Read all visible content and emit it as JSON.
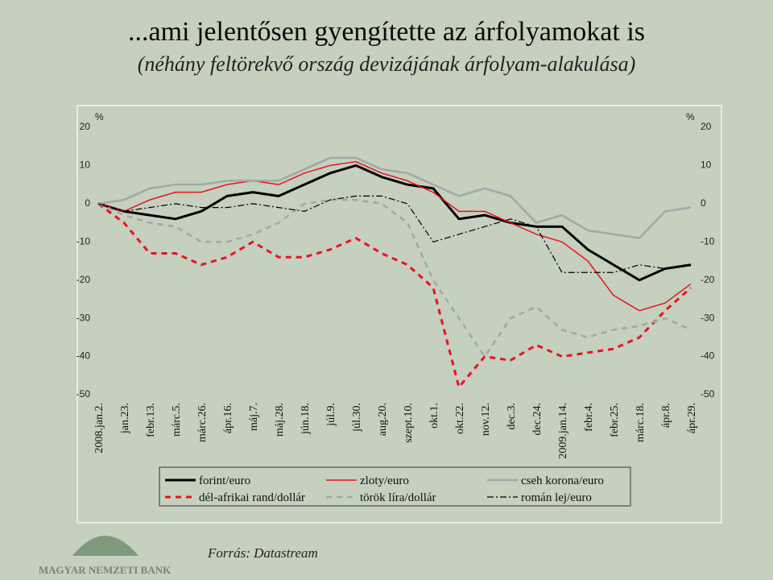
{
  "chart_data": {
    "type": "line",
    "title": "...ami jelentősen gyengítette az árfolyamokat is",
    "subtitle": "(néhány feltörekvő ország devizájának árfolyam-alakulása)",
    "y_unit": "%",
    "y2_unit": "%",
    "categories": [
      "2008.jan.2.",
      "jan.23.",
      "febr.13.",
      "márc.5.",
      "márc.26.",
      "ápr.16.",
      "máj.7.",
      "máj.28.",
      "jún.18.",
      "júl.9.",
      "júl.30.",
      "aug.20.",
      "szept.10.",
      "okt.1.",
      "okt.22.",
      "nov.12.",
      "dec.3.",
      "dec.24.",
      "2009.jan.14.",
      "febr.4.",
      "febr.25.",
      "márc.18.",
      "ápr.8.",
      "ápr.29."
    ],
    "ylim": [
      -50,
      20
    ],
    "yticks": [
      -50,
      -40,
      -30,
      -20,
      -10,
      0,
      10,
      20
    ],
    "y2lim": [
      -50,
      20
    ],
    "y2ticks": [
      -50,
      -40,
      -30,
      -20,
      -10,
      0,
      10,
      20
    ],
    "series": [
      {
        "name": "forint/euro",
        "color": "#000000",
        "width": 3,
        "dash": "solid",
        "values": [
          0,
          -2,
          -3,
          -4,
          -2,
          2,
          3,
          2,
          5,
          8,
          10,
          7,
          5,
          4,
          -4,
          -3,
          -5,
          -6,
          -6,
          -12,
          -16,
          -20,
          -17,
          -16
        ]
      },
      {
        "name": "zloty/euro",
        "color": "#e8141b",
        "width": 1.5,
        "dash": "solid",
        "values": [
          0,
          -2,
          1,
          3,
          3,
          5,
          6,
          5,
          8,
          10,
          11,
          8,
          6,
          3,
          -2,
          -2,
          -5,
          -8,
          -10,
          -15,
          -24,
          -28,
          -26,
          -21
        ]
      },
      {
        "name": "cseh korona/euro",
        "color": "#a6a6a6",
        "width": 2.5,
        "dash": "solid",
        "values": [
          0,
          1,
          4,
          5,
          5,
          6,
          6,
          6,
          9,
          12,
          12,
          9,
          8,
          5,
          2,
          4,
          2,
          -5,
          -3,
          -7,
          -8,
          -9,
          -2,
          -1
        ]
      },
      {
        "name": "dél-afrikai rand/dollár",
        "color": "#e8141b",
        "width": 3,
        "dash": "dashed",
        "values": [
          0,
          -5,
          -13,
          -13,
          -16,
          -14,
          -10,
          -14,
          -14,
          -12,
          -9,
          -13,
          -16,
          -22,
          -48,
          -40,
          -41,
          -37,
          -40,
          -39,
          -38,
          -35,
          -28,
          -22
        ]
      },
      {
        "name": "török líra/dollár",
        "color": "#a6a6a6",
        "width": 2.5,
        "dash": "dashed",
        "values": [
          0,
          -3,
          -5,
          -6,
          -10,
          -10,
          -8,
          -5,
          0,
          1,
          1,
          0,
          -5,
          -20,
          -30,
          -40,
          -30,
          -27,
          -33,
          -35,
          -33,
          -32,
          -30,
          -33
        ]
      },
      {
        "name": "román lej/euro",
        "color": "#000000",
        "width": 1.2,
        "dash": "dashdot",
        "values": [
          0,
          -2,
          -1,
          0,
          -1,
          -1,
          0,
          -1,
          -2,
          1,
          2,
          2,
          0,
          -10,
          -8,
          -6,
          -4,
          -6,
          -18,
          -18,
          -18,
          -16,
          -17,
          -16
        ]
      }
    ],
    "source": "Forrás: Datastream",
    "logo_text": "MAGYAR NEMZETI BANK"
  }
}
